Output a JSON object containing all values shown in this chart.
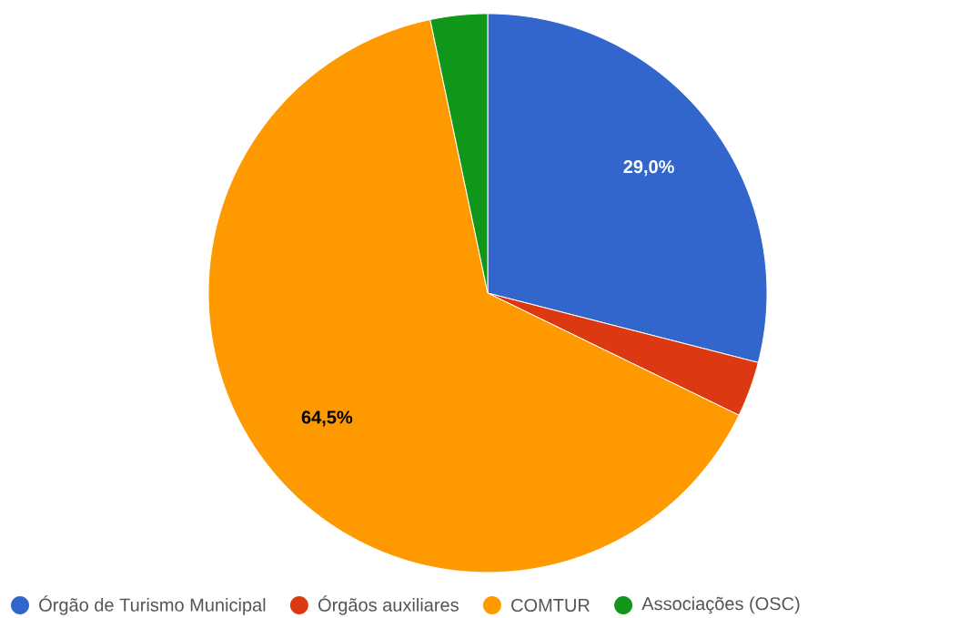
{
  "chart_data": {
    "type": "pie",
    "categories": [
      "Órgão de Turismo Municipal",
      "Órgãos auxiliares",
      "COMTUR",
      "Associações (OSC)"
    ],
    "values": [
      29.0,
      3.2,
      64.5,
      3.3
    ],
    "colors": [
      "#3366cc",
      "#dc3912",
      "#ff9900",
      "#109618"
    ],
    "value_labels": [
      "29,0%",
      null,
      "64,5%",
      null
    ],
    "legend": "bottom"
  }
}
